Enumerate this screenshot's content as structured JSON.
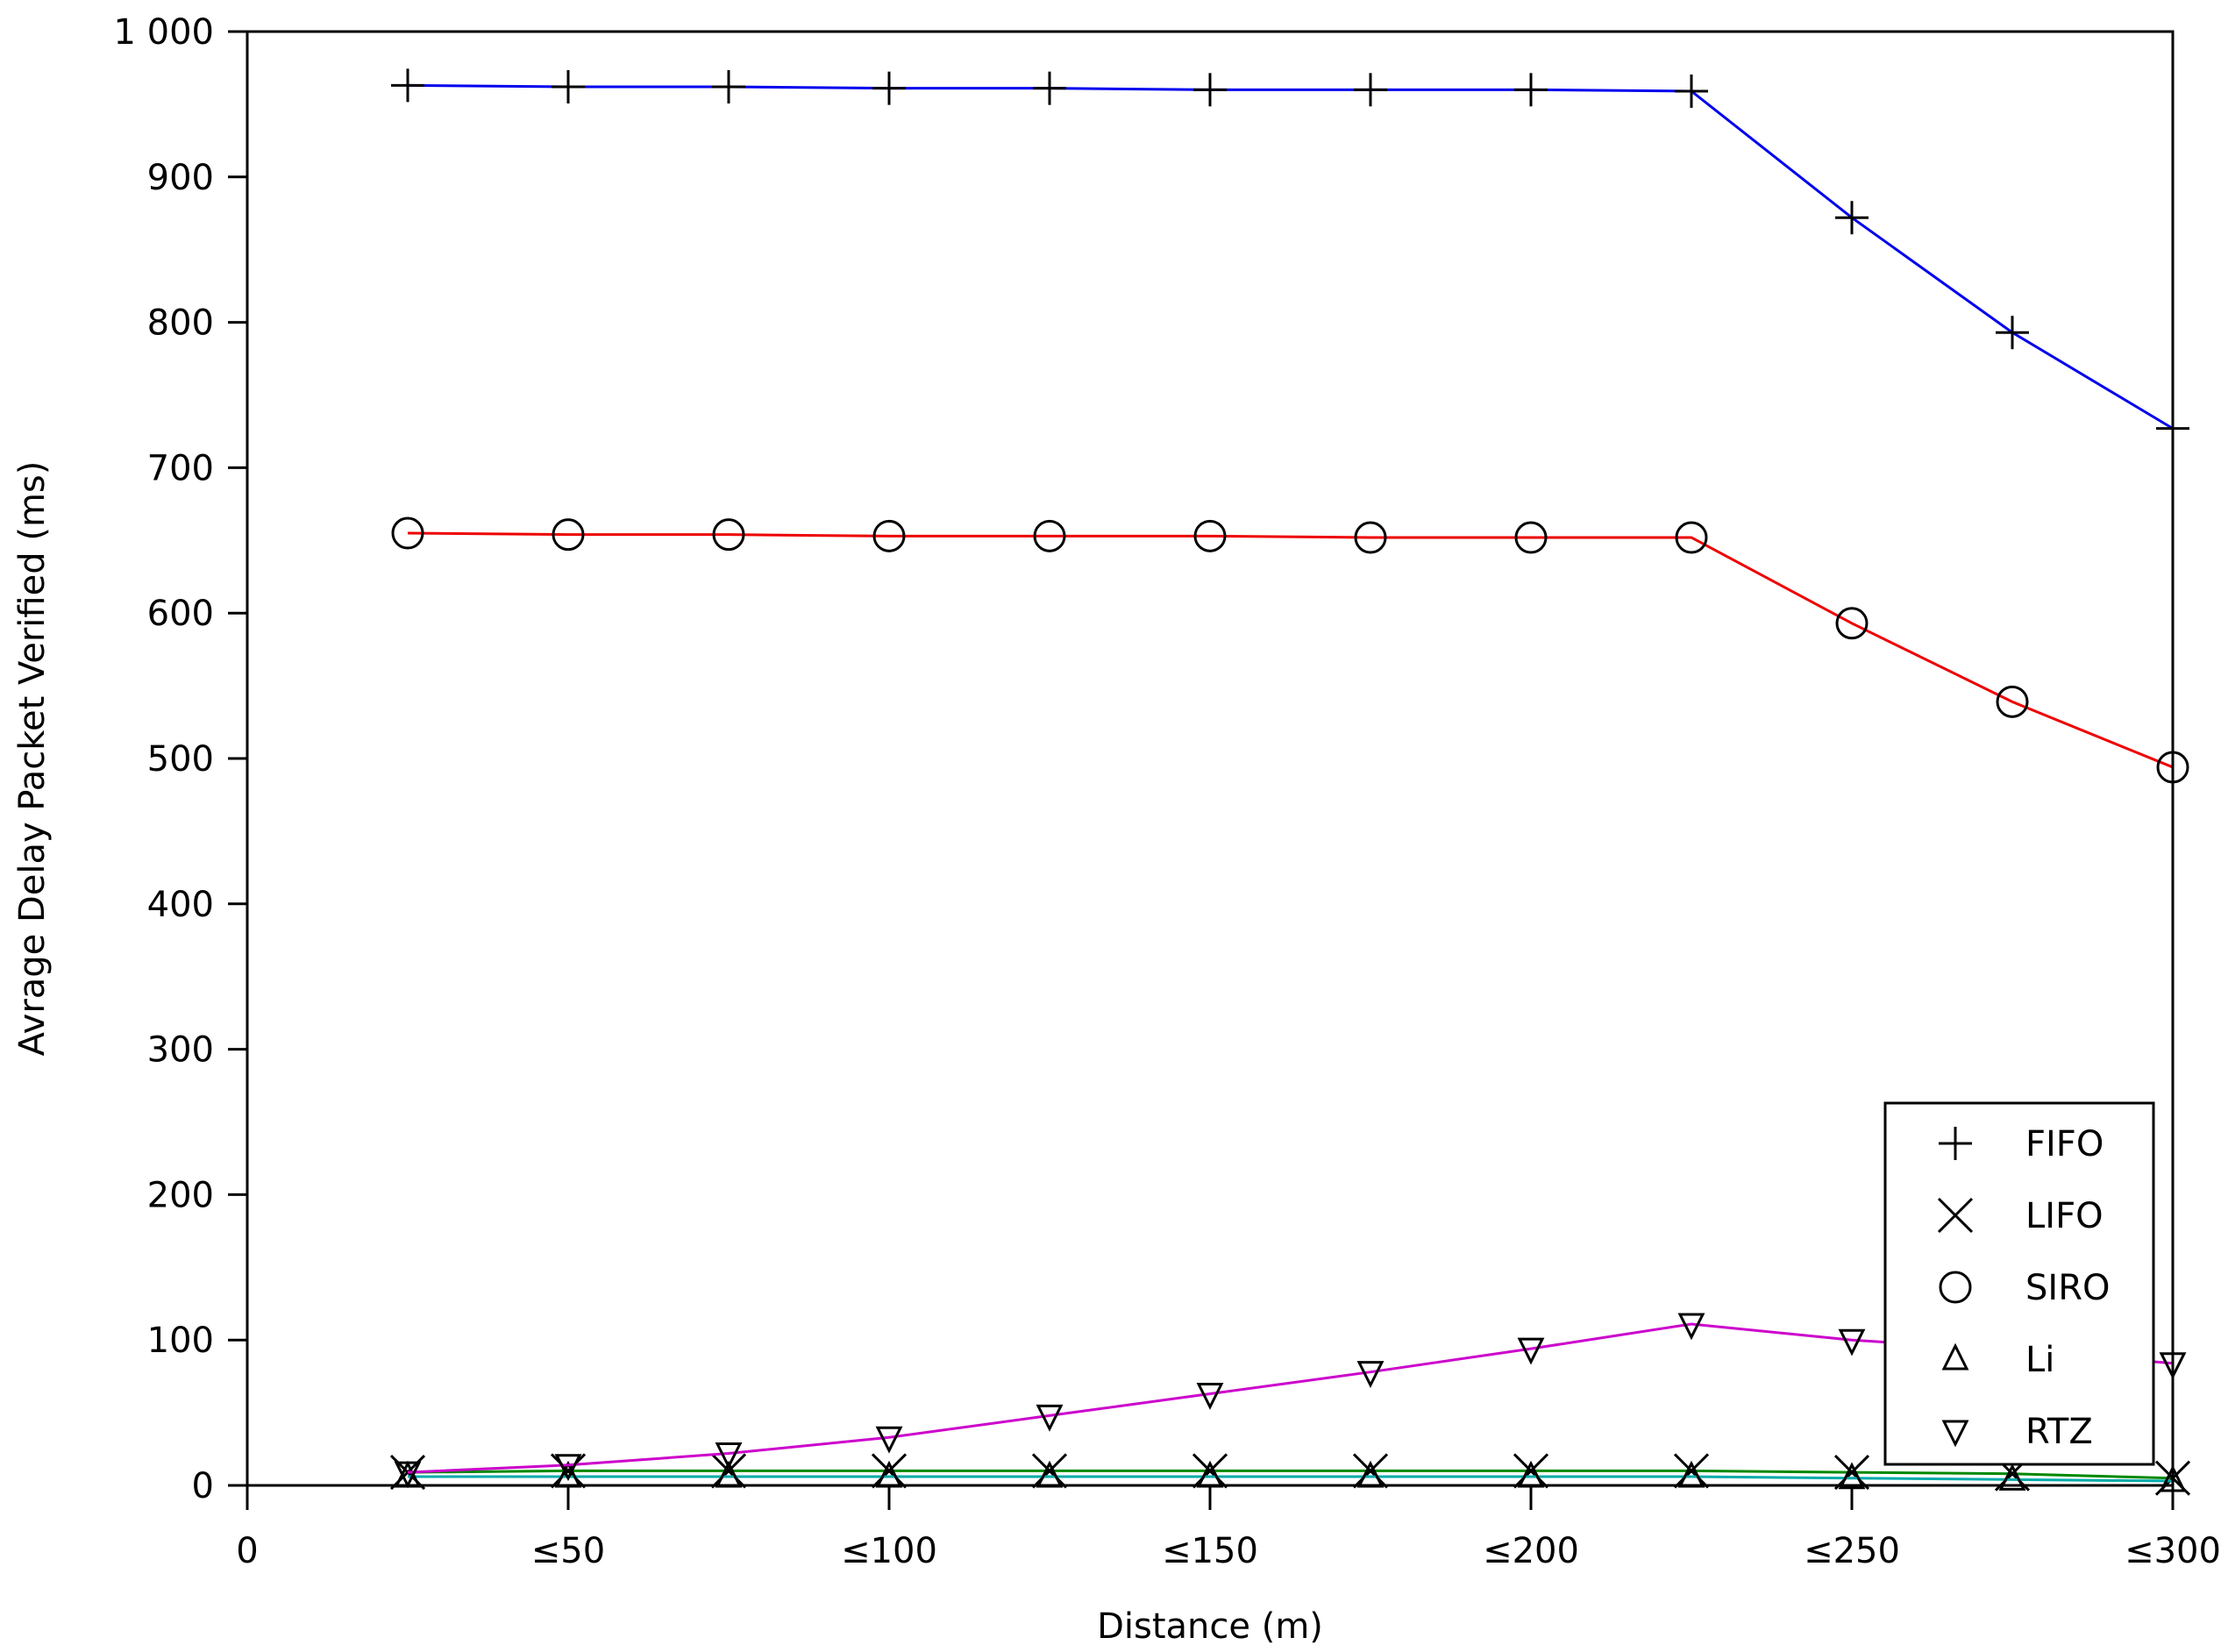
{
  "chart_data": {
    "type": "line",
    "title": "",
    "xlabel": "Distance (m)",
    "ylabel": "Avrage Delay Packet Verified (ms)",
    "xlim": [
      0,
      300
    ],
    "ylim": [
      0,
      1000
    ],
    "x_ticks": [
      {
        "value": 0,
        "label": "0"
      },
      {
        "value": 50,
        "label": "≤50"
      },
      {
        "value": 100,
        "label": "≤100"
      },
      {
        "value": 150,
        "label": "≤150"
      },
      {
        "value": 200,
        "label": "≤200"
      },
      {
        "value": 250,
        "label": "≤250"
      },
      {
        "value": 300,
        "label": "≤300"
      }
    ],
    "y_ticks": [
      {
        "value": 0,
        "label": "0"
      },
      {
        "value": 100,
        "label": "100"
      },
      {
        "value": 200,
        "label": "200"
      },
      {
        "value": 300,
        "label": "300"
      },
      {
        "value": 400,
        "label": "400"
      },
      {
        "value": 500,
        "label": "500"
      },
      {
        "value": 600,
        "label": "600"
      },
      {
        "value": 700,
        "label": "700"
      },
      {
        "value": 800,
        "label": "800"
      },
      {
        "value": 900,
        "label": "900"
      },
      {
        "value": 1000,
        "label": "1 000"
      }
    ],
    "grid": false,
    "legend_position": "bottom-right",
    "x": [
      25,
      50,
      75,
      100,
      125,
      150,
      175,
      200,
      225,
      250,
      275,
      300
    ],
    "series": [
      {
        "name": "FIFO",
        "marker": "plus",
        "color": "#0000ee",
        "values": [
          963,
          962,
          962,
          961,
          961,
          960,
          960,
          960,
          959,
          872,
          793,
          727
        ]
      },
      {
        "name": "LIFO",
        "marker": "cross",
        "color": "#008800",
        "values": [
          9,
          10,
          10,
          10,
          10,
          10,
          10,
          10,
          10,
          9,
          8,
          5
        ]
      },
      {
        "name": "SIRO",
        "marker": "circle",
        "color": "#ee0000",
        "values": [
          655,
          654,
          654,
          653,
          653,
          653,
          652,
          652,
          652,
          593,
          539,
          494
        ]
      },
      {
        "name": "Li",
        "marker": "triangle-up",
        "color": "#00aaaa",
        "values": [
          6,
          6,
          6,
          6,
          6,
          6,
          6,
          6,
          6,
          5,
          4,
          3
        ]
      },
      {
        "name": "RTZ",
        "marker": "triangle-down",
        "color": "#cc00cc",
        "values": [
          9,
          14,
          22,
          33,
          48,
          63,
          78,
          94,
          111,
          100,
          93,
          84
        ]
      }
    ]
  }
}
